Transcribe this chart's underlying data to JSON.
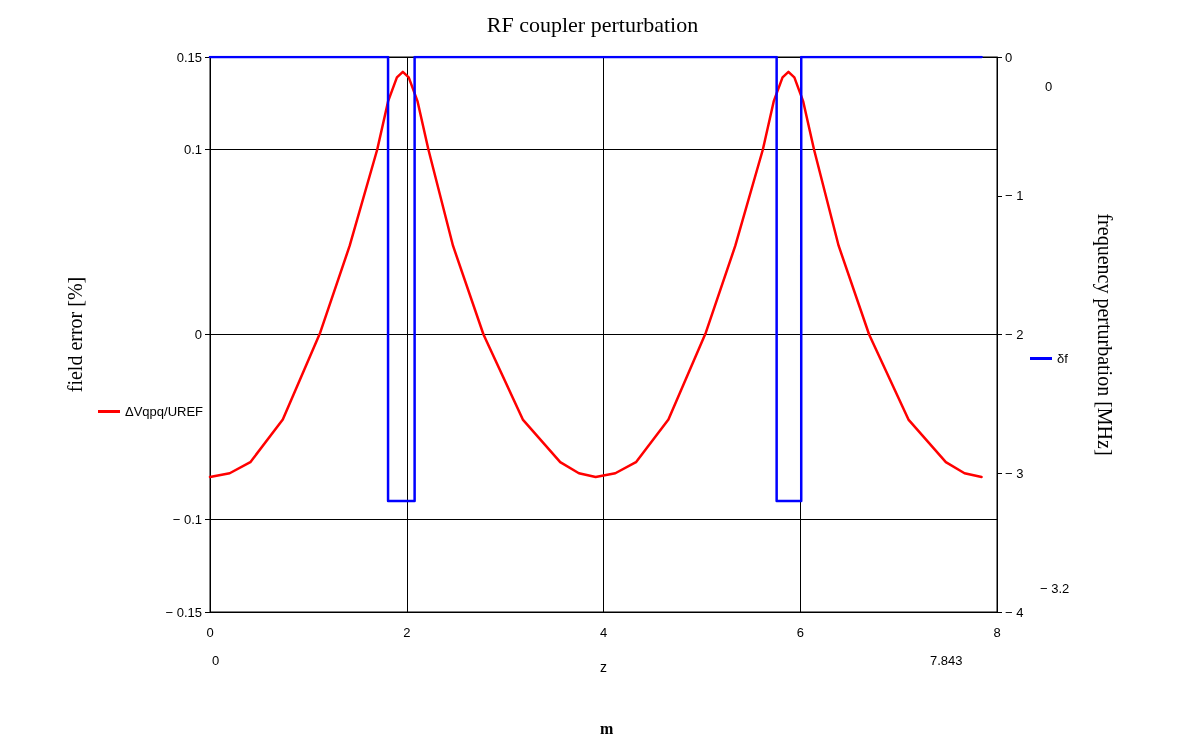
{
  "chart_data": {
    "type": "line",
    "title": "RF coupler perturbation",
    "xlabel": "z",
    "ylabel": "field error [%]",
    "y2label": "frequency perturbation [MHz]",
    "xlim": [
      0,
      8
    ],
    "xticks": [
      0,
      2,
      4,
      6,
      8
    ],
    "ylim": [
      -0.15,
      0.15
    ],
    "yticks": [
      {
        "value": -0.15,
        "label": "− 0.15"
      },
      {
        "value": -0.1,
        "label": "− 0.1"
      },
      0,
      0.1,
      0.15
    ],
    "y2lim": [
      -4,
      0
    ],
    "y2ticks": [
      {
        "value": -4,
        "label": "− 4"
      },
      {
        "value": -3,
        "label": "− 3"
      },
      {
        "value": -2,
        "label": "− 2"
      },
      {
        "value": -1,
        "label": "− 1"
      },
      0
    ],
    "grid": true,
    "legend": "left",
    "line_style": "solid",
    "marker": "none",
    "annotations": [
      "0",
      "− 3.2",
      "0",
      "7.843",
      "m"
    ],
    "series": [
      {
        "name": "ΔVqpq/UREF",
        "color": "#ff0000",
        "x": [
          0,
          0.2,
          0.41,
          0.74,
          1.12,
          1.42,
          1.7,
          1.81,
          1.9,
          1.96,
          2.02,
          2.11,
          2.22,
          2.47,
          2.78,
          3.18,
          3.56,
          3.75,
          3.92,
          4.12,
          4.33,
          4.66,
          5.04,
          5.34,
          5.62,
          5.73,
          5.82,
          5.88,
          5.94,
          6.03,
          6.14,
          6.39,
          6.7,
          7.1,
          7.48,
          7.67,
          7.843
        ],
        "values": [
          -0.077,
          -0.075,
          -0.069,
          -0.046,
          0.001,
          0.048,
          0.1,
          0.126,
          0.139,
          0.142,
          0.139,
          0.126,
          0.1,
          0.048,
          0.0,
          -0.046,
          -0.069,
          -0.075,
          -0.077,
          -0.075,
          -0.069,
          -0.046,
          0.001,
          0.048,
          0.1,
          0.126,
          0.139,
          0.142,
          0.139,
          0.126,
          0.1,
          0.048,
          0.0,
          -0.046,
          -0.069,
          -0.075,
          -0.077
        ]
      },
      {
        "name": "δf",
        "color": "#0000ff",
        "axis": "y2",
        "x": [
          0,
          1.81,
          1.81,
          2.08,
          2.08,
          5.76,
          5.76,
          6.01,
          6.01,
          7.843
        ],
        "values": [
          0,
          0,
          -3.2,
          -3.2,
          0,
          0,
          -3.2,
          -3.2,
          0,
          0
        ]
      }
    ]
  }
}
